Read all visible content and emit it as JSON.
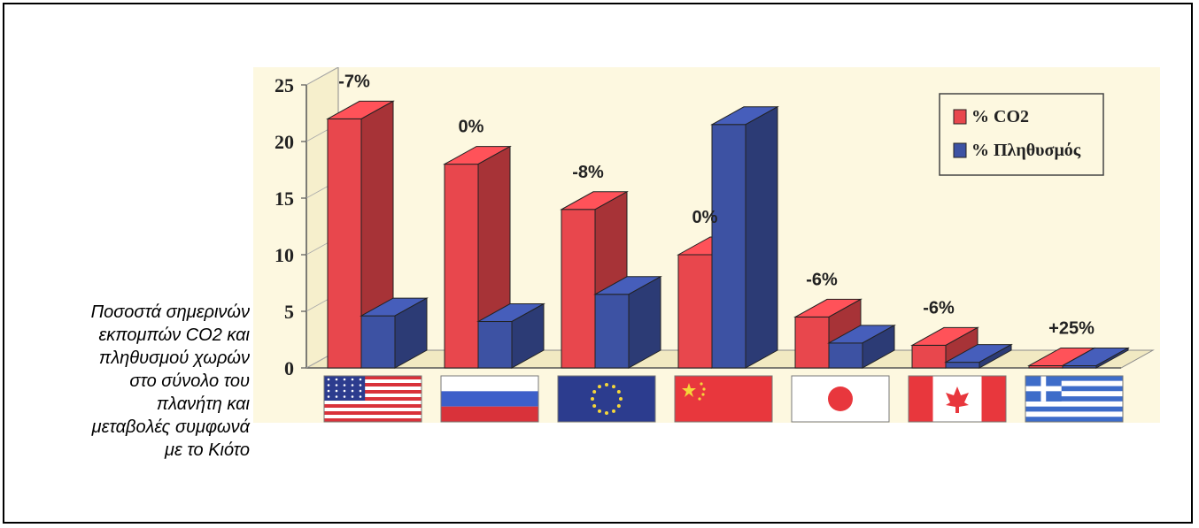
{
  "caption_lines": [
    "Ποσοστά σημερινών",
    "εκπομπών CO2 και",
    "πληθυσμού χωρών",
    "στο σύνολο του",
    "πλανήτη και",
    "μεταβολές συμφωνά",
    "με το Κιότο"
  ],
  "colors": {
    "co2": "#e8474d",
    "population": "#3d52a3",
    "background": "#fdf8e0"
  },
  "chart_data": {
    "type": "bar",
    "categories": [
      "USA",
      "Russia",
      "EU",
      "China",
      "Japan",
      "Canada",
      "Greece"
    ],
    "series": [
      {
        "name": "% CO2",
        "values": [
          22,
          18,
          14,
          10,
          4.5,
          2,
          0.2
        ]
      },
      {
        "name": "% Πληθυσμός",
        "values": [
          4.6,
          4.1,
          6.5,
          21.5,
          2.2,
          0.5,
          0.2
        ]
      }
    ],
    "annotations": [
      "-7%",
      "0%",
      "-8%",
      "0%",
      "-6%",
      "-6%",
      "+25%"
    ],
    "ylim": [
      0,
      25
    ],
    "yticks": [
      "0",
      "5",
      "10",
      "15",
      "20",
      "25"
    ],
    "title": "",
    "xlabel": "",
    "ylabel": "",
    "legend_position": "top-right",
    "flags": [
      "usa-flag-icon",
      "russia-flag-icon",
      "eu-flag-icon",
      "china-flag-icon",
      "japan-flag-icon",
      "canada-flag-icon",
      "greece-flag-icon"
    ]
  }
}
